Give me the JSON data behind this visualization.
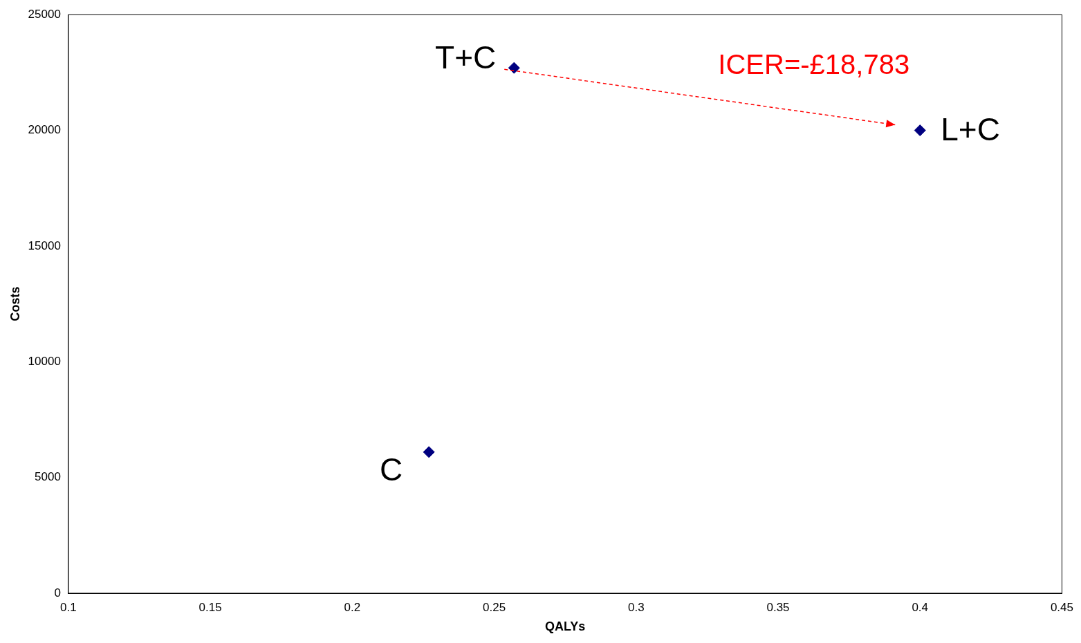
{
  "chart_data": {
    "type": "scatter",
    "xlabel": "QALYs",
    "ylabel": "Costs",
    "series": [
      {
        "color": "#000080",
        "x": [
          0.227,
          0.257,
          0.4
        ],
        "values": [
          6100,
          22700,
          20000
        ]
      }
    ],
    "xlim": [
      0.1,
      0.45
    ],
    "xticks": [
      0.1,
      0.15,
      0.2,
      0.25,
      0.3,
      0.35,
      0.4,
      0.45
    ],
    "ylim": [
      0,
      25000
    ],
    "yticks": [
      0,
      5000,
      10000,
      15000,
      20000,
      25000
    ],
    "grid": false,
    "legend": false,
    "marker": "diamond",
    "annotations": [
      {
        "text": "C",
        "x": 0.227,
        "y": 6100
      },
      {
        "text": "T+C",
        "x": 0.257,
        "y": 22700
      },
      {
        "text": "L+C",
        "x": 0.4,
        "y": 20000
      },
      "ICER=-£18,783"
    ]
  }
}
